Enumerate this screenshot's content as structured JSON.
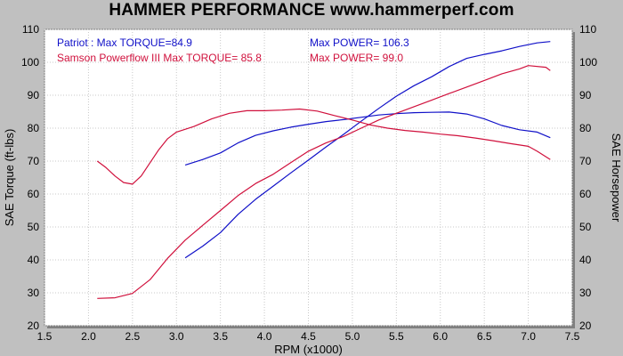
{
  "title": "HAMMER PERFORMANCE www.hammerperf.com",
  "colors": {
    "patriot": "#1010c8",
    "samson": "#d0103c",
    "plot_bg": "#ffffff",
    "grid": "#c8c8c8"
  },
  "legend": {
    "patriot_torque": "Patriot : Max TORQUE=84.9",
    "patriot_power": "Max POWER= 106.3",
    "samson_torque": "Samson Powerflow III  Max TORQUE= 85.8",
    "samson_power": "Max POWER= 99.0"
  },
  "chart_data": {
    "type": "line",
    "title": "HAMMER PERFORMANCE www.hammerperf.com",
    "xlabel": "RPM (x1000)",
    "ylabel": "SAE Torque (ft-lbs)",
    "y2label": "SAE Horsepower",
    "xlim": [
      1.5,
      7.5
    ],
    "ylim": [
      20,
      110
    ],
    "y2lim": [
      20,
      110
    ],
    "xticks": [
      "1.5",
      "2.0",
      "2.5",
      "3.0",
      "3.5",
      "4.0",
      "4.5",
      "5.0",
      "5.5",
      "6.0",
      "6.5",
      "7.0",
      "7.5"
    ],
    "yticks": [
      "20",
      "30",
      "40",
      "50",
      "60",
      "70",
      "80",
      "90",
      "100",
      "110"
    ],
    "grid": true,
    "legend_position": "top-left",
    "series": [
      {
        "name": "Patriot",
        "measure": "torque",
        "color_key": "patriot",
        "points": [
          [
            3.1,
            68.8
          ],
          [
            3.3,
            70.5
          ],
          [
            3.5,
            72.5
          ],
          [
            3.7,
            75.5
          ],
          [
            3.9,
            77.8
          ],
          [
            4.1,
            79.2
          ],
          [
            4.3,
            80.3
          ],
          [
            4.5,
            81.2
          ],
          [
            4.7,
            82.0
          ],
          [
            4.9,
            82.6
          ],
          [
            5.1,
            83.3
          ],
          [
            5.3,
            84.0
          ],
          [
            5.5,
            84.4
          ],
          [
            5.7,
            84.7
          ],
          [
            5.9,
            84.8
          ],
          [
            6.1,
            84.9
          ],
          [
            6.3,
            84.3
          ],
          [
            6.5,
            82.8
          ],
          [
            6.7,
            80.8
          ],
          [
            6.9,
            79.5
          ],
          [
            7.1,
            78.8
          ],
          [
            7.25,
            77.1
          ]
        ]
      },
      {
        "name": "Patriot",
        "measure": "power",
        "color_key": "patriot",
        "points": [
          [
            3.1,
            40.6
          ],
          [
            3.3,
            44.2
          ],
          [
            3.5,
            48.3
          ],
          [
            3.7,
            53.8
          ],
          [
            3.9,
            58.4
          ],
          [
            4.1,
            62.4
          ],
          [
            4.3,
            66.4
          ],
          [
            4.5,
            70.3
          ],
          [
            4.7,
            74.3
          ],
          [
            4.9,
            78.1
          ],
          [
            5.1,
            82.1
          ],
          [
            5.3,
            86.0
          ],
          [
            5.5,
            89.7
          ],
          [
            5.7,
            92.9
          ],
          [
            5.9,
            95.6
          ],
          [
            6.1,
            98.7
          ],
          [
            6.3,
            101.2
          ],
          [
            6.5,
            102.4
          ],
          [
            6.7,
            103.5
          ],
          [
            6.9,
            104.8
          ],
          [
            7.1,
            105.9
          ],
          [
            7.25,
            106.3
          ]
        ]
      },
      {
        "name": "Samson Powerflow III",
        "measure": "torque",
        "color_key": "samson",
        "points": [
          [
            2.1,
            70.0
          ],
          [
            2.2,
            68.0
          ],
          [
            2.3,
            65.5
          ],
          [
            2.4,
            63.5
          ],
          [
            2.5,
            63.0
          ],
          [
            2.6,
            65.5
          ],
          [
            2.7,
            69.5
          ],
          [
            2.8,
            73.5
          ],
          [
            2.9,
            76.8
          ],
          [
            3.0,
            78.8
          ],
          [
            3.2,
            80.5
          ],
          [
            3.4,
            82.8
          ],
          [
            3.6,
            84.5
          ],
          [
            3.8,
            85.3
          ],
          [
            4.0,
            85.3
          ],
          [
            4.2,
            85.5
          ],
          [
            4.4,
            85.8
          ],
          [
            4.6,
            85.2
          ],
          [
            4.8,
            83.8
          ],
          [
            5.0,
            82.5
          ],
          [
            5.2,
            81.0
          ],
          [
            5.4,
            80.0
          ],
          [
            5.6,
            79.3
          ],
          [
            5.8,
            78.8
          ],
          [
            6.0,
            78.2
          ],
          [
            6.2,
            77.7
          ],
          [
            6.4,
            77.0
          ],
          [
            6.6,
            76.2
          ],
          [
            6.8,
            75.3
          ],
          [
            7.0,
            74.5
          ],
          [
            7.1,
            73.0
          ],
          [
            7.25,
            70.5
          ]
        ]
      },
      {
        "name": "Samson Powerflow III",
        "measure": "power",
        "color_key": "samson",
        "points": [
          [
            2.1,
            28.3
          ],
          [
            2.3,
            28.5
          ],
          [
            2.5,
            29.8
          ],
          [
            2.7,
            34.0
          ],
          [
            2.9,
            40.5
          ],
          [
            3.1,
            46.0
          ],
          [
            3.3,
            50.5
          ],
          [
            3.5,
            55.0
          ],
          [
            3.7,
            59.5
          ],
          [
            3.9,
            63.2
          ],
          [
            4.1,
            66.0
          ],
          [
            4.3,
            69.5
          ],
          [
            4.5,
            73.0
          ],
          [
            4.7,
            75.5
          ],
          [
            4.9,
            77.5
          ],
          [
            5.1,
            80.0
          ],
          [
            5.3,
            82.5
          ],
          [
            5.5,
            84.5
          ],
          [
            5.7,
            86.5
          ],
          [
            5.9,
            88.5
          ],
          [
            6.1,
            90.5
          ],
          [
            6.3,
            92.5
          ],
          [
            6.5,
            94.5
          ],
          [
            6.7,
            96.5
          ],
          [
            6.9,
            98.0
          ],
          [
            7.0,
            99.0
          ],
          [
            7.2,
            98.5
          ],
          [
            7.25,
            97.5
          ]
        ]
      }
    ]
  }
}
